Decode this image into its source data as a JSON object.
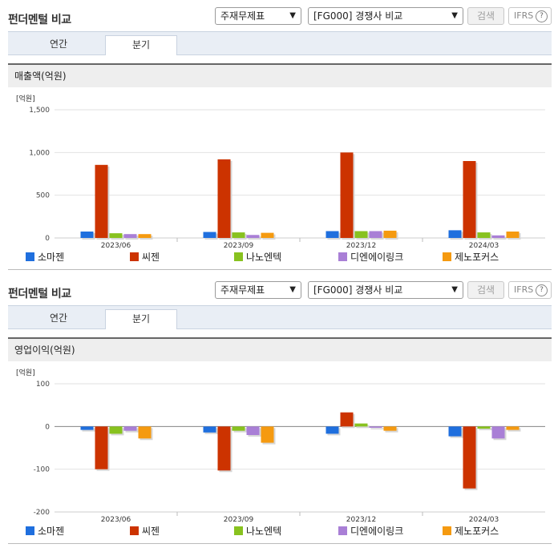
{
  "panels": [
    {
      "title": "펀더멘털 비교",
      "select1": "주재무제표",
      "select2": "[FG000] 경쟁사 비교",
      "search_label": "검색",
      "ifrs_label": "IFRS",
      "ifrs_help": "?",
      "tabs": [
        {
          "label": "연간"
        },
        {
          "label": "분기"
        }
      ],
      "active_tab": "분기",
      "section_title": "매출액(억원)"
    },
    {
      "title": "펀더멘털 비교",
      "select1": "주재무제표",
      "select2": "[FG000] 경쟁사 비교",
      "search_label": "검색",
      "ifrs_label": "IFRS",
      "ifrs_help": "?",
      "tabs": [
        {
          "label": "연간"
        },
        {
          "label": "분기"
        }
      ],
      "active_tab": "분기",
      "section_title": "영업이익(억원)"
    }
  ],
  "colors": {
    "소마젠": "#1f6fde",
    "씨젠": "#cc3300",
    "나노엔텍": "#88c21f",
    "디엔에이링크": "#a97fd6",
    "제노포커스": "#f59a10"
  },
  "chart_data": [
    {
      "type": "bar",
      "unit_label": "[억원]",
      "categories": [
        "2023/06",
        "2023/09",
        "2023/12",
        "2024/03"
      ],
      "ylim": [
        0,
        1500
      ],
      "yticks": [
        0,
        500,
        1000,
        1500
      ],
      "ytick_labels": [
        "0",
        "500",
        "1,000",
        "1,500"
      ],
      "grid": true,
      "legend_position": "bottom",
      "series": [
        {
          "name": "소마젠",
          "values": [
            75,
            70,
            80,
            90
          ]
        },
        {
          "name": "씨젠",
          "values": [
            855,
            920,
            1000,
            900
          ]
        },
        {
          "name": "나노엔텍",
          "values": [
            55,
            65,
            80,
            65
          ]
        },
        {
          "name": "디엔에이링크",
          "values": [
            45,
            35,
            80,
            30
          ]
        },
        {
          "name": "제노포커스",
          "values": [
            45,
            60,
            85,
            75
          ]
        }
      ]
    },
    {
      "type": "bar",
      "unit_label": "[억원]",
      "categories": [
        "2023/06",
        "2023/09",
        "2023/12",
        "2024/03"
      ],
      "ylim": [
        -200,
        100
      ],
      "yticks": [
        -200,
        -100,
        0,
        100
      ],
      "ytick_labels": [
        "-200",
        "-100",
        "0",
        "100"
      ],
      "grid": true,
      "legend_position": "bottom",
      "series": [
        {
          "name": "소마젠",
          "values": [
            -8,
            -14,
            -17,
            -23
          ]
        },
        {
          "name": "씨젠",
          "values": [
            -100,
            -103,
            33,
            -145
          ]
        },
        {
          "name": "나노엔텍",
          "values": [
            -17,
            -10,
            7,
            -5
          ]
        },
        {
          "name": "디엔에이링크",
          "values": [
            -10,
            -20,
            -3,
            -28
          ]
        },
        {
          "name": "제노포커스",
          "values": [
            -28,
            -38,
            -10,
            -8
          ]
        }
      ]
    }
  ]
}
